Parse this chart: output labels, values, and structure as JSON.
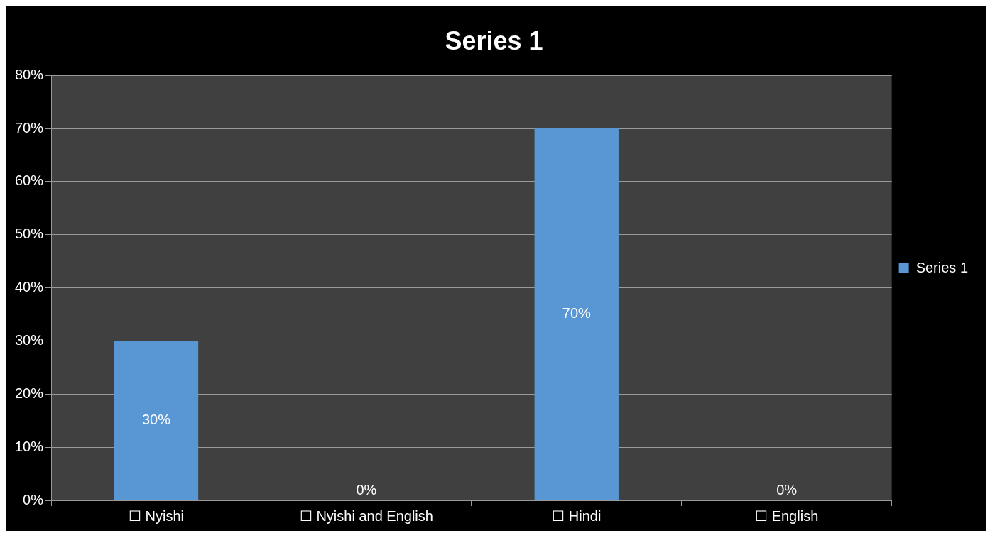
{
  "chart_data": {
    "type": "bar",
    "title": "Series 1",
    "categories": [
      "☐ Nyishi",
      "☐ Nyishi and English",
      "☐ Hindi",
      "☐ English"
    ],
    "series": [
      {
        "name": "Series 1",
        "color": "#5896d4",
        "values": [
          30,
          0,
          70,
          0
        ],
        "value_labels": [
          "30%",
          "0%",
          "70%",
          "0%"
        ]
      }
    ],
    "ylim": [
      0,
      80
    ],
    "yticks": [
      {
        "value": 0,
        "label": "0%"
      },
      {
        "value": 10,
        "label": "10%"
      },
      {
        "value": 20,
        "label": "20%"
      },
      {
        "value": 30,
        "label": "30%"
      },
      {
        "value": 40,
        "label": "40%"
      },
      {
        "value": 50,
        "label": "50%"
      },
      {
        "value": 60,
        "label": "60%"
      },
      {
        "value": 70,
        "label": "70%"
      },
      {
        "value": 80,
        "label": "80%"
      }
    ],
    "grid": "y",
    "legend": "right"
  }
}
